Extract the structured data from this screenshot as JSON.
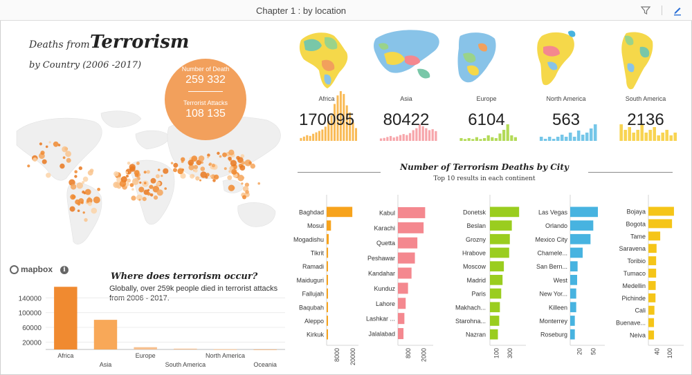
{
  "window": {
    "title": "Chapter 1 : by location",
    "filter_icon": "filter-icon",
    "edit_icon": "pencil-icon"
  },
  "header": {
    "title_small": "Deaths from",
    "title_big": "Terrorism",
    "subtitle": "by Country (2006 -2017)"
  },
  "summary": {
    "deaths_label": "Number of Death",
    "deaths_value": "259 332",
    "attacks_label": "Terrorist Attacks",
    "attacks_value": "108 135"
  },
  "map": {
    "attribution": "mapbox",
    "info_icon": "info-icon"
  },
  "info": {
    "question": "Where does terrorism occur?",
    "text": "Globally, over 259k people died in terrorist attacks from 2006 - 2017."
  },
  "continents": [
    {
      "name": "Africa",
      "value": "170095",
      "color": "#f7a31c",
      "spark": [
        4,
        6,
        8,
        7,
        10,
        12,
        14,
        16,
        20,
        28,
        36,
        52,
        64,
        70,
        66,
        50,
        40,
        26,
        18
      ]
    },
    {
      "name": "Asia",
      "value": "80422",
      "color": "#f4888f",
      "spark": [
        5,
        6,
        8,
        10,
        7,
        9,
        12,
        14,
        12,
        16,
        22,
        26,
        34,
        30,
        26,
        22,
        24,
        20
      ]
    },
    {
      "name": "Europe",
      "value": "6104",
      "color": "#9acd1f",
      "spark": [
        3,
        2,
        3,
        2,
        4,
        2,
        3,
        6,
        4,
        3,
        8,
        12,
        18,
        6,
        4
      ]
    },
    {
      "name": "North America",
      "value": "563",
      "color": "#47b3e0",
      "spark": [
        2,
        1,
        2,
        1,
        2,
        3,
        2,
        4,
        2,
        5,
        3,
        4,
        6,
        8
      ]
    },
    {
      "name": "South America",
      "value": "2136",
      "color": "#f5c518",
      "spark": [
        6,
        4,
        5,
        3,
        4,
        6,
        3,
        4,
        5,
        2,
        3,
        4,
        2,
        3
      ]
    }
  ],
  "city_section": {
    "title": "Number of Terrorism Deaths by City",
    "subtitle": "Top 10 results in each continent"
  },
  "chart_data": [
    {
      "type": "bar",
      "title": "",
      "categories": [
        "Africa",
        "Asia",
        "Europe",
        "South America",
        "North America",
        "Oceania"
      ],
      "values": [
        170095,
        80422,
        6104,
        2136,
        563,
        12
      ],
      "ylim": [
        0,
        180000
      ],
      "yticks": [
        20000,
        60000,
        100000,
        140000
      ],
      "colors": [
        "#f08a30",
        "#f8a858",
        "#f6c090",
        "#f6c090",
        "#f6c090",
        "#f6c090"
      ],
      "grid": true
    },
    {
      "type": "bar",
      "orientation": "horizontal",
      "continent": "Africa",
      "color": "#f7a31c",
      "xlim": [
        0,
        21000
      ],
      "xticks": [
        8000,
        20000
      ],
      "categories": [
        "Baghdad",
        "Mosul",
        "Mogadishu",
        "Tikrit",
        "Ramadi",
        "Maiduguri",
        "Fallujah",
        "Baqubah",
        "Aleppo",
        "Kirkuk"
      ],
      "values": [
        19500,
        3300,
        1600,
        1100,
        1000,
        950,
        900,
        850,
        800,
        700
      ]
    },
    {
      "type": "bar",
      "orientation": "horizontal",
      "continent": "Asia",
      "color": "#f4888f",
      "xlim": [
        0,
        2400
      ],
      "xticks": [
        800,
        2000
      ],
      "categories": [
        "Kabul",
        "Karachi",
        "Quetta",
        "Peshawar",
        "Kandahar",
        "Kunduz",
        "Lahore",
        "Lashkar ...",
        "Jalalabad"
      ],
      "values": [
        2100,
        1980,
        1500,
        1310,
        1050,
        780,
        600,
        500,
        430
      ]
    },
    {
      "type": "bar",
      "orientation": "horizontal",
      "continent": "Europe",
      "color": "#9acd1f",
      "xlim": [
        0,
        480
      ],
      "xticks": [
        100,
        300
      ],
      "categories": [
        "Donetsk",
        "Beslan",
        "Grozny",
        "Hrabove",
        "Moscow",
        "Madrid",
        "Paris",
        "Makhach...",
        "Starohna...",
        "Nazran"
      ],
      "values": [
        440,
        330,
        300,
        290,
        210,
        190,
        170,
        150,
        140,
        120
      ]
    },
    {
      "type": "bar",
      "orientation": "horizontal",
      "continent": "North America",
      "color": "#47b3e0",
      "xlim": [
        0,
        66
      ],
      "xticks": [
        20,
        50
      ],
      "categories": [
        "Las Vegas",
        "Orlando",
        "Mexico City",
        "Chamele...",
        "San Bern...",
        "West",
        "New Yor...",
        "Killeen",
        "Monterrey",
        "Roseburg"
      ],
      "values": [
        60,
        50,
        44,
        27,
        16,
        15,
        13,
        13,
        10,
        10
      ]
    },
    {
      "type": "bar",
      "orientation": "horizontal",
      "continent": "South America",
      "color": "#f5c518",
      "xlim": [
        0,
        145
      ],
      "xticks": [
        40,
        100
      ],
      "categories": [
        "Bojaya",
        "Bogota",
        "Tame",
        "Saravena",
        "Toribio",
        "Tumaco",
        "Medellin",
        "Pichinde",
        "Cali",
        "Buenave...",
        "Neiva"
      ],
      "values": [
        119,
        110,
        55,
        38,
        36,
        36,
        34,
        33,
        28,
        26,
        26
      ]
    }
  ]
}
